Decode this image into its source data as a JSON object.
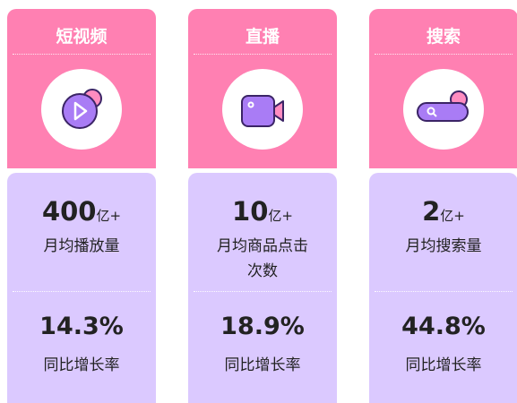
{
  "columns": [
    {
      "title": "短视频",
      "value": "400",
      "unit": "亿+",
      "metric": "月均播放量",
      "growth": "14.3%",
      "growth_label": "同比增长率"
    },
    {
      "title": "直播",
      "value": "10",
      "unit": "亿+",
      "metric": "月均商品点击次数",
      "growth": "18.9%",
      "growth_label": "同比增长率"
    },
    {
      "title": "搜索",
      "value": "2",
      "unit": "亿+",
      "metric": "月均搜索量",
      "growth": "44.8%",
      "growth_label": "同比增长率"
    }
  ]
}
